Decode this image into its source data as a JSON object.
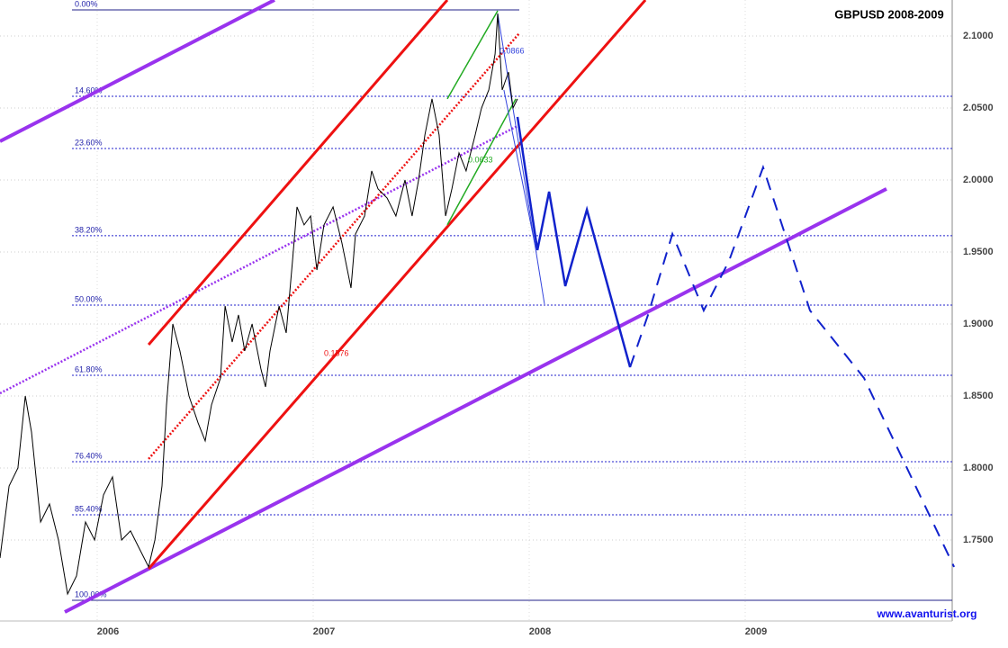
{
  "chart_data": {
    "type": "line",
    "title": "GBPUSD 2008-2009",
    "watermark": "www.avanturist.org",
    "xlim": [
      2005.5,
      2009.9
    ],
    "xticks": [
      2006,
      2007,
      2008,
      2009
    ],
    "ylim": [
      1.7,
      2.125
    ],
    "yticks": [
      {
        "value": 2.1,
        "label": "2.1000"
      },
      {
        "value": 2.05,
        "label": "2.0500"
      },
      {
        "value": 2.0,
        "label": "2.0000"
      },
      {
        "value": 1.95,
        "label": "1.9500"
      },
      {
        "value": 1.9,
        "label": "1.9000"
      },
      {
        "value": 1.85,
        "label": "1.8500"
      },
      {
        "value": 1.8,
        "label": "1.8000"
      },
      {
        "value": 1.75,
        "label": "1.7500"
      }
    ],
    "grid": true,
    "series": [
      {
        "color": "#000000",
        "x": [
          2005.5,
          2005.542,
          2005.583,
          2005.617,
          2005.646,
          2005.688,
          2005.729,
          2005.771,
          2005.813,
          2005.854,
          2005.896,
          2005.938,
          2005.979,
          2006.021,
          2006.063,
          2006.104,
          2006.146,
          2006.188,
          2006.217,
          2006.25,
          2006.271,
          2006.3,
          2006.333,
          2006.375,
          2006.417,
          2006.45,
          2006.479,
          2006.521,
          2006.542,
          2006.575,
          2006.604,
          2006.633,
          2006.667,
          2006.708,
          2006.729,
          2006.75,
          2006.792,
          2006.825,
          2006.854,
          2006.875,
          2006.908,
          2006.938,
          2006.967,
          2007.0,
          2007.042,
          2007.083,
          2007.125,
          2007.146,
          2007.188,
          2007.221,
          2007.25,
          2007.292,
          2007.333,
          2007.375,
          2007.408,
          2007.438,
          2007.467,
          2007.5,
          2007.533,
          2007.563,
          2007.592,
          2007.625,
          2007.658,
          2007.7,
          2007.729,
          2007.763,
          2007.792,
          2007.804,
          2007.825,
          2007.854,
          2007.875,
          2007.896
        ],
        "values": [
          1.7375,
          1.7875,
          1.8,
          1.85,
          1.825,
          1.7625,
          1.775,
          1.75,
          1.7125,
          1.725,
          1.7625,
          1.75,
          1.7813,
          1.7938,
          1.75,
          1.7563,
          1.7438,
          1.7313,
          1.75,
          1.7875,
          1.8438,
          1.9,
          1.8813,
          1.85,
          1.8313,
          1.8188,
          1.8438,
          1.8625,
          1.9125,
          1.8875,
          1.9063,
          1.8813,
          1.9,
          1.8688,
          1.8563,
          1.8813,
          1.9125,
          1.8938,
          1.9438,
          1.9813,
          1.9688,
          1.975,
          1.9375,
          1.9688,
          1.9813,
          1.9563,
          1.925,
          1.9625,
          1.975,
          2.0063,
          1.9938,
          1.9875,
          1.975,
          2.0,
          1.975,
          2.0,
          2.0313,
          2.0563,
          2.0313,
          1.975,
          1.9938,
          2.0188,
          2.0063,
          2.0313,
          2.05,
          2.0625,
          2.0875,
          2.1156,
          2.0625,
          2.075,
          2.05,
          2.0563
        ]
      }
    ],
    "fib_levels": [
      {
        "label": "0.00%",
        "value": 2.1181
      },
      {
        "label": "14.60%",
        "value": 2.0581
      },
      {
        "label": "23.60%",
        "value": 2.0219
      },
      {
        "label": "38.20%",
        "value": 1.9613
      },
      {
        "label": "50.00%",
        "value": 1.9131
      },
      {
        "label": "61.80%",
        "value": 1.8644
      },
      {
        "label": "76.40%",
        "value": 1.8044
      },
      {
        "label": "85.40%",
        "value": 1.7675
      },
      {
        "label": "100.00%",
        "value": 1.7081
      }
    ],
    "trend_lines": [
      {
        "color": "#9933ee",
        "x": [
          2005.5,
          2006.771
        ],
        "values": [
          2.0269,
          2.125
        ]
      },
      {
        "color": "#9933ee",
        "x": [
          2005.8,
          2009.604
        ],
        "values": [
          1.7,
          1.9938
        ]
      },
      {
        "color": "#9933ee",
        "style": "dotted",
        "x": [
          2005.5,
          2007.896
        ],
        "values": [
          1.8519,
          2.0375
        ]
      },
      {
        "color": "#ee1111",
        "x": [
          2006.188,
          2007.571
        ],
        "values": [
          1.8856,
          2.125
        ]
      },
      {
        "color": "#ee1111",
        "x": [
          2006.188,
          2008.488
        ],
        "values": [
          1.73,
          2.125
        ]
      },
      {
        "color": "#ee1111",
        "style": "dotted",
        "x": [
          2006.188,
          2007.904
        ],
        "values": [
          1.8063,
          2.1019
        ]
      },
      {
        "color": "#22aa22",
        "x": [
          2007.571,
          2007.804
        ],
        "values": [
          2.0563,
          2.1175
        ]
      },
      {
        "color": "#22aa22",
        "x": [
          2007.571,
          2007.888
        ],
        "values": [
          1.9688,
          2.0563
        ]
      },
      {
        "color": "#3344dd",
        "x": [
          2007.804,
          2008.021
        ],
        "values": [
          2.1156,
          1.9138
        ]
      },
      {
        "color": "#3344dd",
        "x": [
          2007.833,
          2007.979
        ],
        "values": [
          2.0625,
          1.9531
        ]
      },
      {
        "color": "#1122cc",
        "style": "forecast",
        "x": [
          2007.896,
          2007.988,
          2008.042,
          2008.117,
          2008.217,
          2008.417
        ],
        "values": [
          2.0438,
          1.9513,
          1.9919,
          1.9263,
          1.9794,
          1.87
        ]
      },
      {
        "color": "#1122cc",
        "style": "dashed",
        "x": [
          2008.417,
          2008.5,
          2008.613,
          2008.758,
          2008.875,
          2009.033,
          2009.25,
          2009.5,
          2009.917
        ],
        "values": [
          1.87,
          1.9063,
          1.9625,
          1.9094,
          1.9438,
          2.0088,
          1.9094,
          1.8625,
          1.7313
        ]
      }
    ],
    "annotations": [
      {
        "text": "0.1576",
        "color": "#ee1111"
      },
      {
        "text": "0.0866",
        "color": "#3344dd"
      },
      {
        "text": "0.0633",
        "color": "#22aa22"
      }
    ]
  }
}
